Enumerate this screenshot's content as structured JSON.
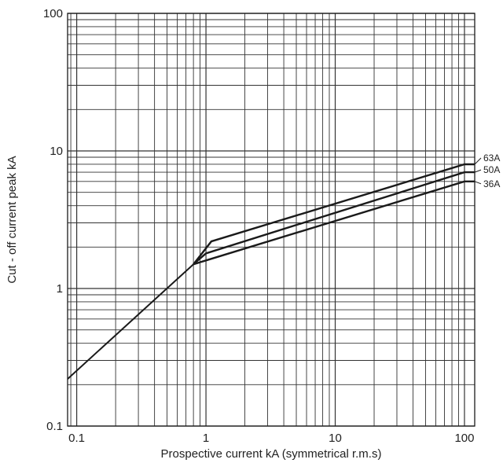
{
  "chart_data": {
    "type": "line",
    "title": "",
    "xlabel": "Prospective current kA (symmetrical r.m.s)",
    "ylabel": "Cut - off current peak kA",
    "xscale": "log",
    "yscale": "log",
    "xlim": [
      0.085,
      120
    ],
    "ylim": [
      0.1,
      100
    ],
    "grid": true,
    "x_ticks": [
      {
        "value": 0.1,
        "label": "0.1"
      },
      {
        "value": 1,
        "label": "1"
      },
      {
        "value": 10,
        "label": "10"
      },
      {
        "value": 100,
        "label": "100"
      }
    ],
    "y_ticks": [
      {
        "value": 0.1,
        "label": "0.1"
      },
      {
        "value": 1,
        "label": "1"
      },
      {
        "value": 10,
        "label": "10"
      },
      {
        "value": 100,
        "label": "100"
      }
    ],
    "common_curve": {
      "x": [
        0.085,
        0.8
      ],
      "y": [
        0.22,
        1.5
      ]
    },
    "series": [
      {
        "name": "63A",
        "x": [
          0.8,
          1.1,
          100,
          120
        ],
        "y": [
          1.5,
          2.2,
          8.0,
          8.0
        ]
      },
      {
        "name": "50A",
        "x": [
          0.8,
          1.0,
          100,
          120
        ],
        "y": [
          1.5,
          1.8,
          7.0,
          7.0
        ]
      },
      {
        "name": "36A",
        "x": [
          0.8,
          1.0,
          100,
          120
        ],
        "y": [
          1.5,
          1.6,
          6.0,
          6.0
        ]
      }
    ],
    "colors": {
      "line": "#1a1a1a",
      "grid": "#333333",
      "background": "#ffffff"
    }
  }
}
